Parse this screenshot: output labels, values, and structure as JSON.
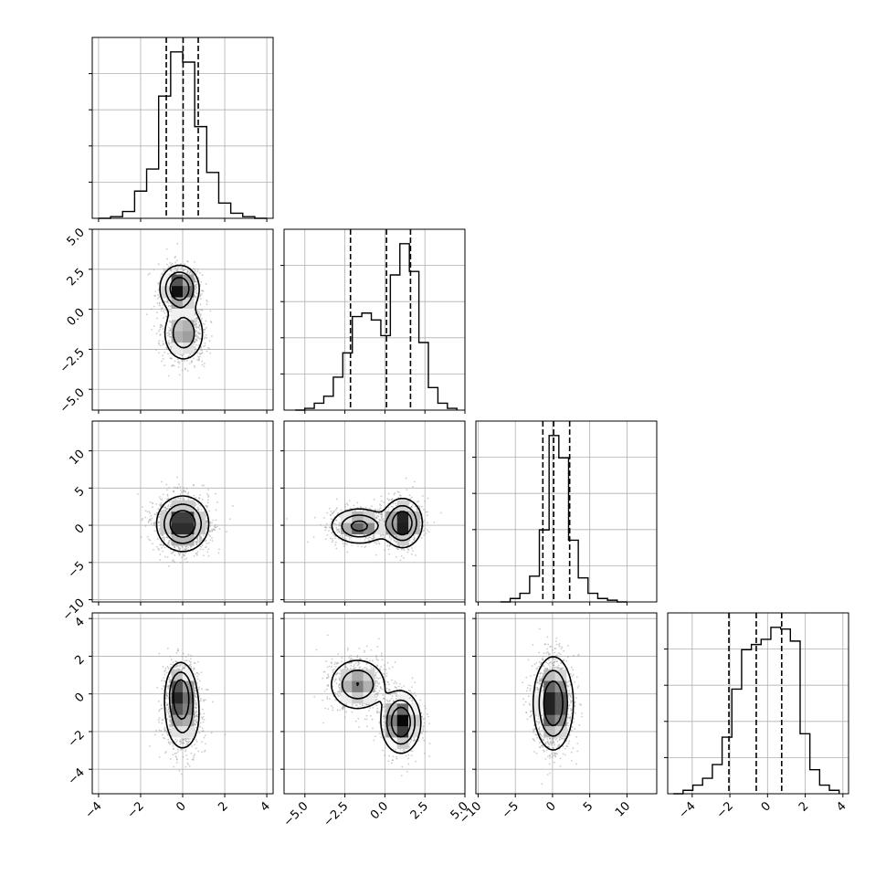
{
  "chart_data": {
    "type": "corner",
    "description_source": "corner plot of 4 parameters",
    "grid": true,
    "colors": {
      "hist": "#000000",
      "contour": "#000000",
      "points": "#9a9a9a",
      "grid": "#b0b0b0"
    },
    "params": [
      {
        "range": [
          -4.3,
          4.3
        ],
        "ticks": [
          -4,
          -2,
          0,
          2,
          4
        ],
        "tick_labels": [
          "−4",
          "−2",
          "0",
          "2",
          "4"
        ],
        "hist": [
          0.0,
          0.01,
          0.04,
          0.16,
          0.29,
          0.72,
          0.98,
          0.92,
          0.54,
          0.27,
          0.09,
          0.03,
          0.01,
          0.0
        ],
        "hist_range": [
          -4.0,
          4.0
        ],
        "quantiles": [
          -0.78,
          0.02,
          0.74
        ],
        "components": [
          {
            "mean": -0.15,
            "sd": 0.35,
            "w": 0.5
          },
          {
            "mean": 0.1,
            "sd": 0.3,
            "w": 0.5
          }
        ]
      },
      {
        "range": [
          -6.3,
          5.0
        ],
        "ticks": [
          -5.0,
          -2.5,
          0.0,
          2.5,
          5.0
        ],
        "tick_labels": [
          "−5.0",
          "−2.5",
          "0.0",
          "2.5",
          "5.0"
        ],
        "hist": [
          0.0,
          0.01,
          0.04,
          0.08,
          0.19,
          0.33,
          0.54,
          0.56,
          0.52,
          0.43,
          0.78,
          0.96,
          0.8,
          0.39,
          0.13,
          0.04,
          0.01
        ],
        "hist_range": [
          -5.6,
          4.5
        ],
        "quantiles": [
          -2.15,
          0.1,
          1.6
        ],
        "components": [
          {
            "mean": -1.6,
            "sd": 1.0,
            "w": 0.45
          },
          {
            "mean": 1.2,
            "sd": 0.7,
            "w": 0.55
          }
        ]
      },
      {
        "range": [
          -10.3,
          14.0
        ],
        "ticks": [
          -10,
          -5,
          0,
          5,
          10
        ],
        "tick_labels": [
          "−10",
          "−5",
          "0",
          "5",
          "10"
        ],
        "hist": [
          0.0,
          0.02,
          0.05,
          0.15,
          0.42,
          0.97,
          0.84,
          0.36,
          0.14,
          0.05,
          0.02,
          0.01,
          0.0
        ],
        "hist_range": [
          -7.0,
          10.0
        ],
        "quantiles": [
          -1.3,
          0.15,
          2.3
        ],
        "components": [
          {
            "mean": 0.2,
            "sd": 1.8,
            "w": 1.0
          }
        ]
      },
      {
        "range": [
          -5.3,
          4.3
        ],
        "ticks": [
          -4,
          -2,
          0,
          2,
          4
        ],
        "tick_labels": [
          "−4",
          "−2",
          "0",
          "2",
          "4"
        ],
        "hist": [
          0.0,
          0.02,
          0.05,
          0.09,
          0.17,
          0.33,
          0.61,
          0.84,
          0.87,
          0.9,
          0.97,
          0.96,
          0.89,
          0.35,
          0.14,
          0.05,
          0.02
        ],
        "hist_range": [
          -5.0,
          3.8
        ],
        "quantiles": [
          -2.05,
          -0.6,
          0.75
        ],
        "components": [
          {
            "mean": -0.6,
            "sd": 1.3,
            "w": 1.0
          }
        ]
      }
    ],
    "pairs": [
      {
        "row": 1,
        "col": 0,
        "peaks": [
          {
            "x": -0.15,
            "y": 1.3,
            "sx": 0.45,
            "sy": 0.7,
            "w": 0.55
          },
          {
            "x": 0.05,
            "y": -1.5,
            "sx": 0.5,
            "sy": 0.9,
            "w": 0.45
          }
        ]
      },
      {
        "row": 2,
        "col": 0,
        "peaks": [
          {
            "x": 0.0,
            "y": 0.2,
            "sx": 0.6,
            "sy": 1.8,
            "w": 1.0
          }
        ]
      },
      {
        "row": 2,
        "col": 1,
        "peaks": [
          {
            "x": -1.6,
            "y": -0.1,
            "sx": 0.9,
            "sy": 1.2,
            "w": 0.45
          },
          {
            "x": 1.1,
            "y": 0.3,
            "sx": 0.6,
            "sy": 1.6,
            "w": 0.55
          }
        ]
      },
      {
        "row": 3,
        "col": 0,
        "peaks": [
          {
            "x": -0.1,
            "y": 0.1,
            "sx": 0.35,
            "sy": 0.8,
            "w": 0.5
          },
          {
            "x": 0.0,
            "y": -1.2,
            "sx": 0.45,
            "sy": 1.0,
            "w": 0.5
          }
        ]
      },
      {
        "row": 3,
        "col": 1,
        "peaks": [
          {
            "x": -1.7,
            "y": 0.5,
            "sx": 0.9,
            "sy": 0.7,
            "w": 0.45
          },
          {
            "x": 1.0,
            "y": -1.5,
            "sx": 0.6,
            "sy": 0.8,
            "w": 0.55
          }
        ]
      },
      {
        "row": 3,
        "col": 2,
        "peaks": [
          {
            "x": 0.1,
            "y": -0.5,
            "sx": 1.3,
            "sy": 1.2,
            "w": 1.0
          }
        ]
      }
    ]
  }
}
